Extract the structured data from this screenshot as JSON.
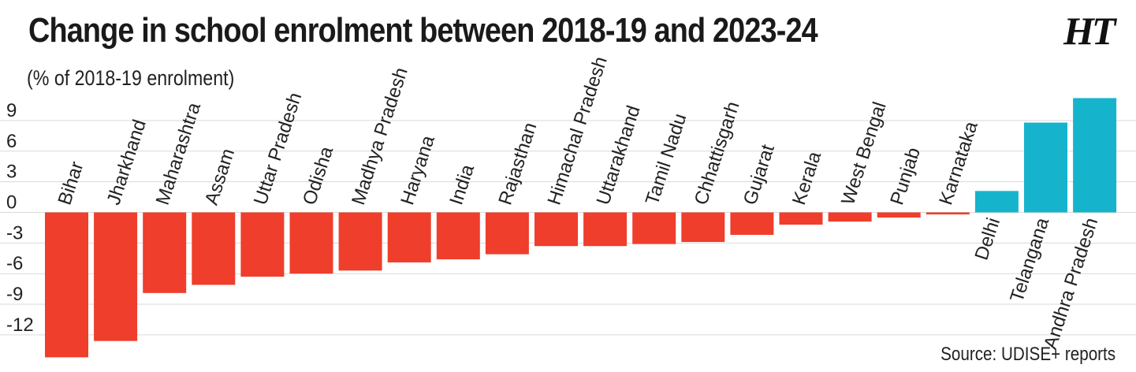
{
  "header": {
    "title": "Change in school enrolment between 2018-19 and 2023-24",
    "subtitle": "(% of 2018-19 enrolment)",
    "logo": "HT"
  },
  "footer": {
    "source": "Source: UDISE+ reports"
  },
  "colors": {
    "negative": "#ef3e2c",
    "positive": "#15b4cc",
    "grid": "#d9d9d9"
  },
  "chart_data": {
    "type": "bar",
    "title": "Change in school enrolment between 2018-19 and 2023-24",
    "ylabel": "(% of 2018-19 enrolment)",
    "xlabel": "",
    "categories": [
      "Bihar",
      "Jharkhand",
      "Maharashtra",
      "Assam",
      "Uttar Pradesh",
      "Odisha",
      "Madhya Pradesh",
      "Haryana",
      "India",
      "Rajasthan",
      "Himachal Pradesh",
      "Uttarakhand",
      "Tamil Nadu",
      "Chhattisgarh",
      "Gujarat",
      "Kerala",
      "West Bengal",
      "Punjab",
      "Karnataka",
      "Delhi",
      "Telangana",
      "Andhra Pradesh"
    ],
    "values": [
      -14.2,
      -12.6,
      -7.9,
      -7.1,
      -6.3,
      -6.0,
      -5.7,
      -4.9,
      -4.6,
      -4.1,
      -3.3,
      -3.3,
      -3.1,
      -2.9,
      -2.2,
      -1.2,
      -0.9,
      -0.5,
      -0.2,
      2.1,
      8.8,
      11.2
    ],
    "yticks": [
      9,
      6,
      3,
      0,
      -3,
      -6,
      -9,
      -12
    ],
    "ylim": [
      -14.5,
      12
    ],
    "grid": true,
    "legend": "none"
  }
}
